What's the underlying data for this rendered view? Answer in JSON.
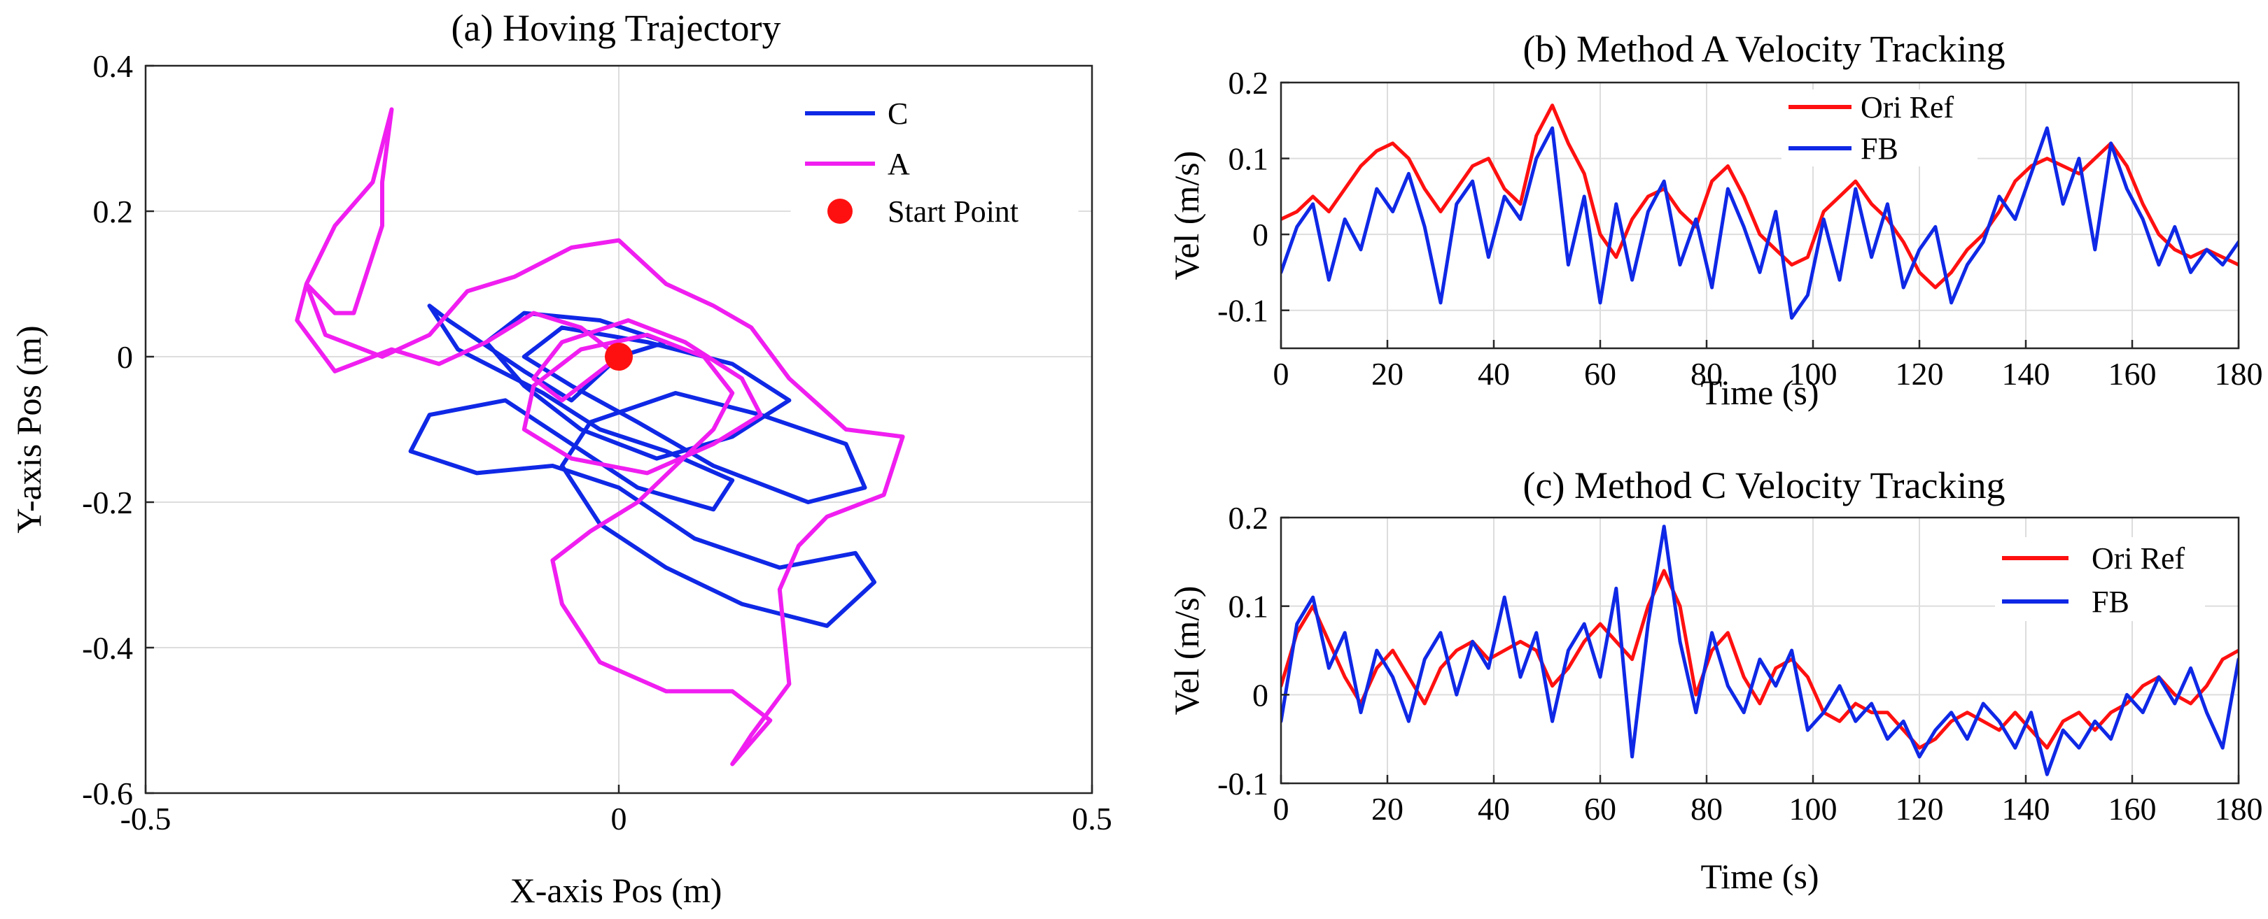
{
  "chart_data": [
    {
      "id": "a",
      "type": "line",
      "title": "(a) Hoving Trajectory",
      "xlabel": "X-axis Pos (m)",
      "ylabel": "Y-axis Pos (m)",
      "xlim": [
        -0.5,
        0.5
      ],
      "ylim": [
        -0.6,
        0.4
      ],
      "xticks": [
        -0.5,
        0,
        0.5
      ],
      "xtick_labels": [
        "-0.5",
        "0",
        "0.5"
      ],
      "yticks": [
        -0.6,
        -0.4,
        -0.2,
        0,
        0.2,
        0.4
      ],
      "ytick_labels": [
        "-0.6",
        "-0.4",
        "-0.2",
        "0",
        "0.2",
        "0.4"
      ],
      "grid": true,
      "legend": "top-right",
      "series": [
        {
          "name": "C",
          "color": "#0f28e6",
          "x": [
            0.0,
            -0.05,
            -0.1,
            -0.18,
            -0.2,
            -0.17,
            -0.08,
            -0.02,
            0.05,
            0.12,
            0.1,
            0.02,
            -0.05,
            -0.12,
            -0.2,
            -0.22,
            -0.15,
            -0.07,
            0.0,
            0.08,
            0.17,
            0.25,
            0.27,
            0.22,
            0.13,
            0.05,
            -0.02,
            -0.06,
            -0.03,
            0.06,
            0.15,
            0.24,
            0.26,
            0.2,
            0.1,
            0.02,
            -0.05,
            -0.1,
            -0.06,
            0.03,
            0.12,
            0.18,
            0.12,
            0.04,
            -0.04,
            -0.1,
            -0.14,
            -0.1,
            -0.02,
            0.05,
            0.0
          ],
          "y": [
            0.0,
            -0.06,
            -0.02,
            0.05,
            0.07,
            0.01,
            -0.05,
            -0.1,
            -0.13,
            -0.17,
            -0.21,
            -0.18,
            -0.12,
            -0.06,
            -0.08,
            -0.13,
            -0.16,
            -0.15,
            -0.18,
            -0.25,
            -0.29,
            -0.27,
            -0.31,
            -0.37,
            -0.34,
            -0.29,
            -0.23,
            -0.15,
            -0.09,
            -0.05,
            -0.08,
            -0.12,
            -0.18,
            -0.2,
            -0.15,
            -0.09,
            -0.04,
            0.0,
            0.04,
            0.02,
            -0.01,
            -0.06,
            -0.11,
            -0.14,
            -0.1,
            -0.04,
            0.02,
            0.06,
            0.05,
            0.02,
            0.0
          ]
        },
        {
          "name": "A",
          "color": "#f01ef0",
          "x": [
            0.0,
            -0.04,
            -0.09,
            -0.14,
            -0.19,
            -0.24,
            -0.3,
            -0.34,
            -0.33,
            -0.3,
            -0.28,
            -0.25,
            -0.25,
            -0.24,
            -0.26,
            -0.3,
            -0.33,
            -0.31,
            -0.25,
            -0.2,
            -0.16,
            -0.11,
            -0.05,
            0.0,
            0.05,
            0.1,
            0.14,
            0.18,
            0.24,
            0.3,
            0.28,
            0.22,
            0.19,
            0.17,
            0.18,
            0.14,
            0.12,
            0.16,
            0.12,
            0.05,
            -0.02,
            -0.06,
            -0.07,
            -0.03,
            0.02,
            0.06,
            0.1,
            0.12,
            0.09,
            0.03,
            -0.04,
            -0.09,
            -0.1,
            -0.05,
            0.03,
            0.1,
            0.15,
            0.13,
            0.07,
            0.01,
            -0.06,
            -0.09,
            -0.06,
            0.0
          ],
          "y": [
            0.0,
            0.04,
            0.06,
            0.02,
            -0.01,
            0.01,
            -0.02,
            0.05,
            0.1,
            0.06,
            0.06,
            0.18,
            0.24,
            0.34,
            0.24,
            0.18,
            0.1,
            0.03,
            0.0,
            0.03,
            0.09,
            0.11,
            0.15,
            0.16,
            0.1,
            0.07,
            0.04,
            -0.03,
            -0.1,
            -0.11,
            -0.19,
            -0.22,
            -0.26,
            -0.32,
            -0.45,
            -0.52,
            -0.56,
            -0.5,
            -0.46,
            -0.46,
            -0.42,
            -0.34,
            -0.28,
            -0.24,
            -0.2,
            -0.15,
            -0.1,
            -0.05,
            0.0,
            0.03,
            0.01,
            -0.04,
            -0.1,
            -0.14,
            -0.16,
            -0.12,
            -0.08,
            -0.03,
            0.02,
            0.05,
            0.02,
            -0.03,
            -0.06,
            0.0
          ]
        },
        {
          "name": "Start Point",
          "type": "marker",
          "color": "#ff1010",
          "x": [
            0.0
          ],
          "y": [
            0.0
          ]
        }
      ]
    },
    {
      "id": "b",
      "type": "line",
      "title": "(b) Method A Velocity Tracking",
      "xlabel": "Time (s)",
      "ylabel": "Vel (m/s)",
      "xlim": [
        0,
        180
      ],
      "ylim": [
        -0.15,
        0.2
      ],
      "xticks": [
        0,
        20,
        40,
        60,
        80,
        100,
        120,
        140,
        160,
        180
      ],
      "xtick_labels": [
        "0",
        "20",
        "40",
        "60",
        "80",
        "100",
        "120",
        "140",
        "160",
        "180"
      ],
      "yticks": [
        -0.1,
        0,
        0.1,
        0.2
      ],
      "ytick_labels": [
        "-0.1",
        "0",
        "0.1",
        "0.2"
      ],
      "grid": true,
      "legend": "top-right",
      "series": [
        {
          "name": "Ori Ref",
          "color": "#ff1010",
          "x": [
            0,
            3,
            6,
            9,
            12,
            15,
            18,
            21,
            24,
            27,
            30,
            33,
            36,
            39,
            42,
            45,
            48,
            51,
            54,
            57,
            60,
            63,
            66,
            69,
            72,
            75,
            78,
            81,
            84,
            87,
            90,
            93,
            96,
            99,
            102,
            105,
            108,
            111,
            114,
            117,
            120,
            123,
            126,
            129,
            132,
            135,
            138,
            141,
            144,
            147,
            150,
            153,
            156,
            159,
            162,
            165,
            168,
            171,
            174,
            177,
            180
          ],
          "y": [
            0.02,
            0.03,
            0.05,
            0.03,
            0.06,
            0.09,
            0.11,
            0.12,
            0.1,
            0.06,
            0.03,
            0.06,
            0.09,
            0.1,
            0.06,
            0.04,
            0.13,
            0.17,
            0.12,
            0.08,
            0.0,
            -0.03,
            0.02,
            0.05,
            0.06,
            0.03,
            0.01,
            0.07,
            0.09,
            0.05,
            0.0,
            -0.02,
            -0.04,
            -0.03,
            0.03,
            0.05,
            0.07,
            0.04,
            0.02,
            -0.01,
            -0.05,
            -0.07,
            -0.05,
            -0.02,
            0.0,
            0.03,
            0.07,
            0.09,
            0.1,
            0.09,
            0.08,
            0.1,
            0.12,
            0.09,
            0.04,
            0.0,
            -0.02,
            -0.03,
            -0.02,
            -0.03,
            -0.04
          ]
        },
        {
          "name": "FB",
          "color": "#0f28e6",
          "x": [
            0,
            3,
            6,
            9,
            12,
            15,
            18,
            21,
            24,
            27,
            30,
            33,
            36,
            39,
            42,
            45,
            48,
            51,
            54,
            57,
            60,
            63,
            66,
            69,
            72,
            75,
            78,
            81,
            84,
            87,
            90,
            93,
            96,
            99,
            102,
            105,
            108,
            111,
            114,
            117,
            120,
            123,
            126,
            129,
            132,
            135,
            138,
            141,
            144,
            147,
            150,
            153,
            156,
            159,
            162,
            165,
            168,
            171,
            174,
            177,
            180
          ],
          "y": [
            -0.05,
            0.01,
            0.04,
            -0.06,
            0.02,
            -0.02,
            0.06,
            0.03,
            0.08,
            0.01,
            -0.09,
            0.04,
            0.07,
            -0.03,
            0.05,
            0.02,
            0.1,
            0.14,
            -0.04,
            0.05,
            -0.09,
            0.04,
            -0.06,
            0.03,
            0.07,
            -0.04,
            0.02,
            -0.07,
            0.06,
            0.01,
            -0.05,
            0.03,
            -0.11,
            -0.08,
            0.02,
            -0.06,
            0.06,
            -0.03,
            0.04,
            -0.07,
            -0.02,
            0.01,
            -0.09,
            -0.04,
            -0.01,
            0.05,
            0.02,
            0.08,
            0.14,
            0.04,
            0.1,
            -0.02,
            0.12,
            0.06,
            0.02,
            -0.04,
            0.01,
            -0.05,
            -0.02,
            -0.04,
            -0.01
          ]
        }
      ]
    },
    {
      "id": "c",
      "type": "line",
      "title": "(c) Method C Velocity Tracking",
      "xlabel": "Time (s)",
      "ylabel": "Vel (m/s)",
      "xlim": [
        0,
        180
      ],
      "ylim": [
        -0.1,
        0.2
      ],
      "xticks": [
        0,
        20,
        40,
        60,
        80,
        100,
        120,
        140,
        160,
        180
      ],
      "xtick_labels": [
        "0",
        "20",
        "40",
        "60",
        "80",
        "100",
        "120",
        "140",
        "160",
        "180"
      ],
      "yticks": [
        -0.1,
        0,
        0.1,
        0.2
      ],
      "ytick_labels": [
        "-0.1",
        "0",
        "0.1",
        "0.2"
      ],
      "grid": true,
      "legend": "top-right",
      "series": [
        {
          "name": "Ori Ref",
          "color": "#ff1010",
          "x": [
            0,
            3,
            6,
            9,
            12,
            15,
            18,
            21,
            24,
            27,
            30,
            33,
            36,
            39,
            42,
            45,
            48,
            51,
            54,
            57,
            60,
            63,
            66,
            69,
            72,
            75,
            78,
            81,
            84,
            87,
            90,
            93,
            96,
            99,
            102,
            105,
            108,
            111,
            114,
            117,
            120,
            123,
            126,
            129,
            132,
            135,
            138,
            141,
            144,
            147,
            150,
            153,
            156,
            159,
            162,
            165,
            168,
            171,
            174,
            177,
            180
          ],
          "y": [
            0.01,
            0.07,
            0.1,
            0.06,
            0.02,
            -0.01,
            0.03,
            0.05,
            0.02,
            -0.01,
            0.03,
            0.05,
            0.06,
            0.04,
            0.05,
            0.06,
            0.05,
            0.01,
            0.03,
            0.06,
            0.08,
            0.06,
            0.04,
            0.1,
            0.14,
            0.1,
            0.0,
            0.05,
            0.07,
            0.02,
            -0.01,
            0.03,
            0.04,
            0.02,
            -0.02,
            -0.03,
            -0.01,
            -0.02,
            -0.02,
            -0.04,
            -0.06,
            -0.05,
            -0.03,
            -0.02,
            -0.03,
            -0.04,
            -0.02,
            -0.04,
            -0.06,
            -0.03,
            -0.02,
            -0.04,
            -0.02,
            -0.01,
            0.01,
            0.02,
            0.0,
            -0.01,
            0.01,
            0.04,
            0.05
          ]
        },
        {
          "name": "FB",
          "color": "#0f28e6",
          "x": [
            0,
            3,
            6,
            9,
            12,
            15,
            18,
            21,
            24,
            27,
            30,
            33,
            36,
            39,
            42,
            45,
            48,
            51,
            54,
            57,
            60,
            63,
            66,
            69,
            72,
            75,
            78,
            81,
            84,
            87,
            90,
            93,
            96,
            99,
            102,
            105,
            108,
            111,
            114,
            117,
            120,
            123,
            126,
            129,
            132,
            135,
            138,
            141,
            144,
            147,
            150,
            153,
            156,
            159,
            162,
            165,
            168,
            171,
            174,
            177,
            180
          ],
          "y": [
            -0.03,
            0.08,
            0.11,
            0.03,
            0.07,
            -0.02,
            0.05,
            0.02,
            -0.03,
            0.04,
            0.07,
            0.0,
            0.06,
            0.03,
            0.11,
            0.02,
            0.07,
            -0.03,
            0.05,
            0.08,
            0.02,
            0.12,
            -0.07,
            0.08,
            0.19,
            0.06,
            -0.02,
            0.07,
            0.01,
            -0.02,
            0.04,
            0.01,
            0.05,
            -0.04,
            -0.02,
            0.01,
            -0.03,
            -0.01,
            -0.05,
            -0.03,
            -0.07,
            -0.04,
            -0.02,
            -0.05,
            -0.01,
            -0.03,
            -0.06,
            -0.02,
            -0.09,
            -0.04,
            -0.06,
            -0.03,
            -0.05,
            0.0,
            -0.02,
            0.02,
            -0.01,
            0.03,
            -0.02,
            -0.06,
            0.04
          ]
        }
      ]
    }
  ]
}
